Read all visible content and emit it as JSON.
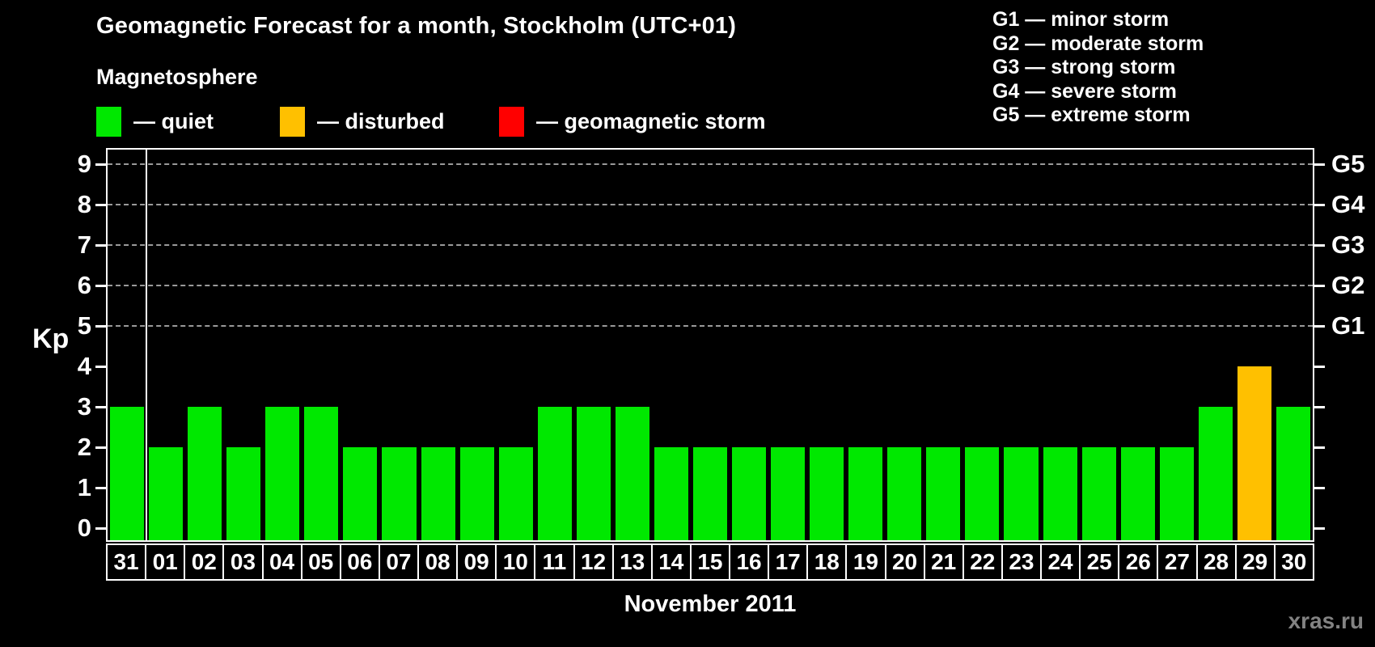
{
  "header": {
    "title": "Geomagnetic Forecast for a month, Stockholm (UTC+01)",
    "subtitle": "Magnetosphere"
  },
  "legend": [
    {
      "name": "quiet",
      "label": "— quiet",
      "color": "#00e800"
    },
    {
      "name": "disturbed",
      "label": "— disturbed",
      "color": "#ffc000"
    },
    {
      "name": "storm",
      "label": "— geomagnetic storm",
      "color": "#ff0000"
    }
  ],
  "g_scale_legend": [
    "G1 — minor storm",
    "G2 — moderate storm",
    "G3 — strong storm",
    "G4 — severe storm",
    "G5 — extreme storm"
  ],
  "chart_data": {
    "type": "bar",
    "title": "Geomagnetic Forecast for a month, Stockholm (UTC+01)",
    "ylabel": "Kp",
    "xlabel": "November 2011",
    "categories": [
      "31",
      "01",
      "02",
      "03",
      "04",
      "05",
      "06",
      "07",
      "08",
      "09",
      "10",
      "11",
      "12",
      "13",
      "14",
      "15",
      "16",
      "17",
      "18",
      "19",
      "20",
      "21",
      "22",
      "23",
      "24",
      "25",
      "26",
      "27",
      "28",
      "29",
      "30"
    ],
    "values": [
      3,
      2,
      3,
      2,
      3,
      3,
      2,
      2,
      2,
      2,
      2,
      3,
      3,
      3,
      2,
      2,
      2,
      2,
      2,
      2,
      2,
      2,
      2,
      2,
      2,
      2,
      2,
      2,
      3,
      4,
      3
    ],
    "statuses": [
      "quiet",
      "quiet",
      "quiet",
      "quiet",
      "quiet",
      "quiet",
      "quiet",
      "quiet",
      "quiet",
      "quiet",
      "quiet",
      "quiet",
      "quiet",
      "quiet",
      "quiet",
      "quiet",
      "quiet",
      "quiet",
      "quiet",
      "quiet",
      "quiet",
      "quiet",
      "quiet",
      "quiet",
      "quiet",
      "quiet",
      "quiet",
      "quiet",
      "quiet",
      "disturbed",
      "quiet"
    ],
    "status_colors": {
      "quiet": "#00e800",
      "disturbed": "#ffc000",
      "storm": "#ff0000"
    },
    "yticks": [
      0,
      1,
      2,
      3,
      4,
      5,
      6,
      7,
      8,
      9
    ],
    "ylim": [
      0,
      9
    ],
    "display_ylim": [
      -0.3,
      9.35
    ],
    "gridlines": [
      5,
      6,
      7,
      8,
      9
    ],
    "grid_style": "dashed",
    "legend_position": "top",
    "right_axis": [
      {
        "level": 5,
        "label": "G1"
      },
      {
        "level": 6,
        "label": "G2"
      },
      {
        "level": 7,
        "label": "G3"
      },
      {
        "level": 8,
        "label": "G4"
      },
      {
        "level": 9,
        "label": "G5"
      }
    ],
    "month_separator_after_index": 0
  },
  "footer": {
    "watermark": "xras.ru"
  }
}
